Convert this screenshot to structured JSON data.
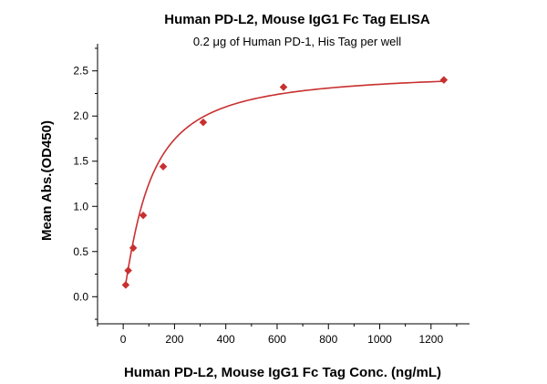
{
  "chart_data": {
    "type": "scatter",
    "title": "Human PD-L2, Mouse IgG1 Fc Tag ELISA",
    "subtitle": "0.2 μg of Human PD-1, His Tag per well",
    "xlabel": "Human PD-L2, Mouse IgG1 Fc Tag Conc. (ng/mL)",
    "ylabel": "Mean Abs.(OD450)",
    "xlim": [
      -100,
      1350
    ],
    "ylim": [
      -0.3,
      2.8
    ],
    "xticks": [
      0,
      200,
      400,
      600,
      800,
      1000,
      1200
    ],
    "yticks": [
      0.0,
      0.5,
      1.0,
      1.5,
      2.0,
      2.5
    ],
    "xtick_labels": [
      "0",
      "200",
      "400",
      "600",
      "800",
      "1000",
      "1200"
    ],
    "ytick_labels": [
      "0.0",
      "0.5",
      "1.0",
      "1.5",
      "2.0",
      "2.5"
    ],
    "grid": false,
    "legend": "none",
    "series": [
      {
        "x": [
          9.8,
          19.5,
          39,
          78,
          156,
          312,
          625,
          1250
        ],
        "y": [
          0.13,
          0.29,
          0.54,
          0.9,
          1.44,
          1.93,
          2.32,
          2.4
        ],
        "marker": "diamond",
        "color": "#c8302f"
      }
    ],
    "fit_curve": {
      "model": "four-parameter-logistic",
      "bottom": 0.0,
      "top": 2.5,
      "ec50": 100,
      "hill": 1.2,
      "color": "#c8302f"
    }
  }
}
